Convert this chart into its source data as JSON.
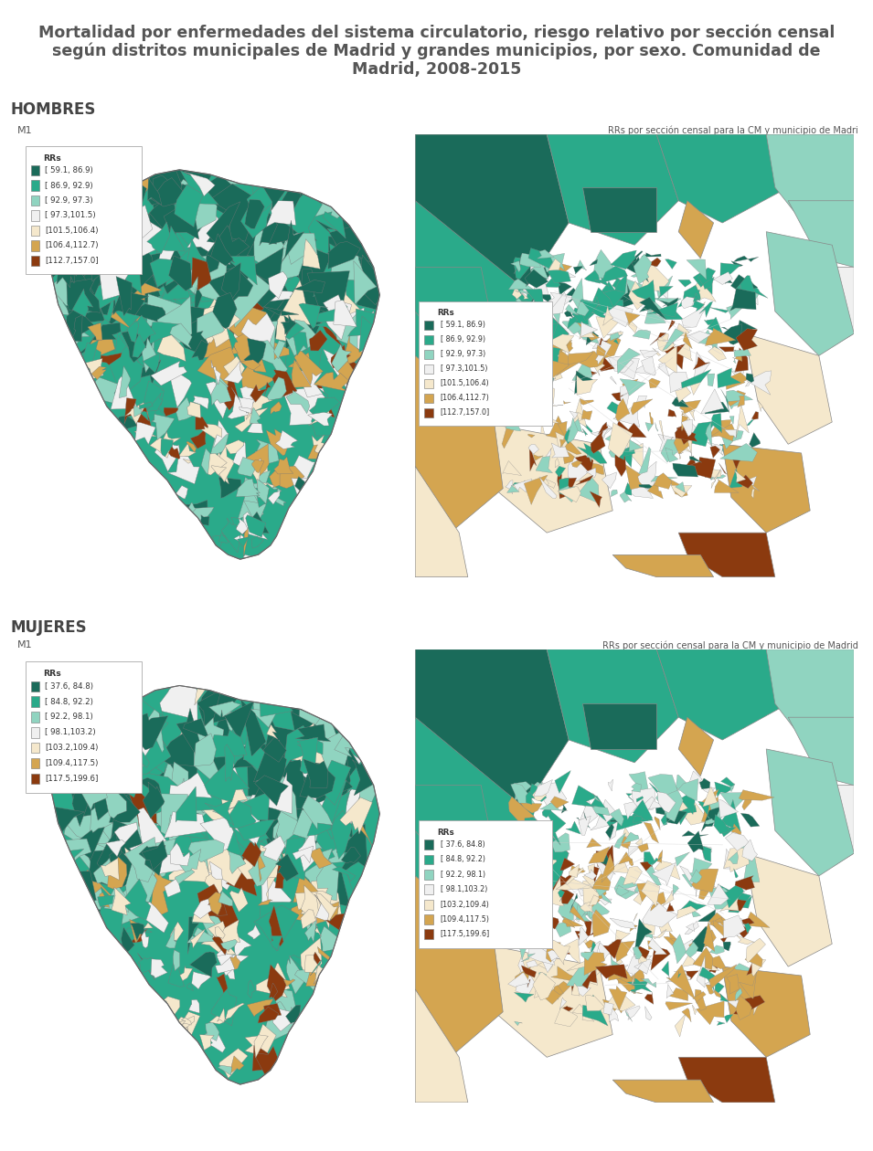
{
  "title_line1": "Mortalidad por enfermedades del sistema circulatorio, riesgo relativo por sección censal",
  "title_line2": "según distritos municipales de Madrid y grandes municipios, por sexo. Comunidad de",
  "title_line3": "Madrid, 2008-2015",
  "title_color": "#555555",
  "title_fontsize": 12.5,
  "section_hombres": "HOMBRES",
  "section_mujeres": "MUJERES",
  "section_fontsize": 12,
  "section_color": "#444444",
  "panel_label": "M1",
  "panel_right_label_hombres": "RRs por sección censal para la CM y municipio de Madri",
  "panel_right_label_mujeres": "RRs por sección censal para la CM y municipio de Madrid",
  "background_color": "#ffffff",
  "panel_bg": "#dce8f0",
  "legend_title": "RRs",
  "legend_hombres_labels": [
    "[ 59.1, 86.9)",
    "[ 86.9, 92.9)",
    "[ 92.9, 97.3)",
    "[ 97.3,101.5)",
    "[101.5,106.4)",
    "[106.4,112.7)",
    "[112.7,157.0]"
  ],
  "legend_mujeres_labels": [
    "[ 37.6, 84.8)",
    "[ 84.8, 92.2)",
    "[ 92.2, 98.1)",
    "[ 98.1,103.2)",
    "[103.2,109.4)",
    "[109.4,117.5)",
    "[117.5,199.6]"
  ],
  "legend_colors": [
    "#1a6b5a",
    "#2aaa8a",
    "#90d4c0",
    "#f0f0f0",
    "#f5e8cc",
    "#d4a550",
    "#8b3a0f"
  ],
  "madrid_shape_x": [
    30,
    33,
    36,
    40,
    45,
    50,
    55,
    60,
    65,
    68,
    70,
    72,
    73,
    72,
    70,
    68,
    67,
    66,
    65,
    63,
    62,
    60,
    58,
    57,
    56,
    55,
    53,
    50,
    48,
    46,
    45,
    43,
    40,
    38,
    35,
    32,
    28,
    25,
    22,
    20,
    19,
    18,
    18,
    19,
    20,
    22,
    24,
    26,
    28,
    30
  ],
  "madrid_shape_y": [
    88,
    92,
    94,
    95,
    94,
    92,
    91,
    90,
    87,
    83,
    79,
    74,
    68,
    62,
    55,
    50,
    46,
    42,
    38,
    34,
    30,
    26,
    22,
    19,
    16,
    14,
    12,
    11,
    12,
    14,
    16,
    20,
    24,
    28,
    32,
    38,
    44,
    52,
    60,
    66,
    72,
    76,
    80,
    83,
    86,
    87,
    88,
    88,
    88,
    88
  ]
}
